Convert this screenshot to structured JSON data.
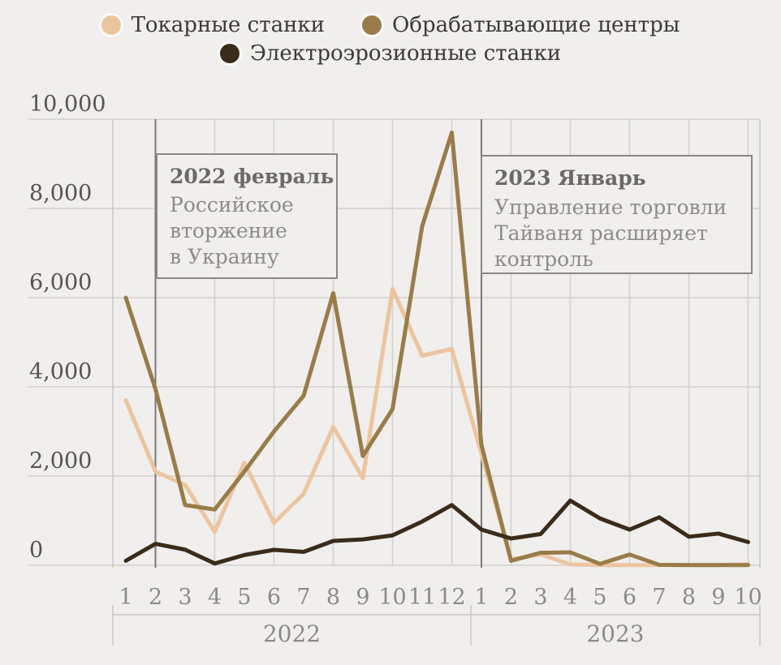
{
  "legend": {
    "items": [
      {
        "label": "Токарные станки",
        "color": "#ecc5a0"
      },
      {
        "label": "Обрабатывающие центры",
        "color": "#997c49"
      },
      {
        "label": "Электроэрозионные станки",
        "color": "#3a2b1a"
      }
    ]
  },
  "annotations": [
    {
      "title": "2022 февраль",
      "lines": [
        "Российское",
        "вторжение",
        "в Украину"
      ]
    },
    {
      "title": "2023 Январь",
      "lines": [
        "Управление торговли",
        "Тайваня расширяет",
        "контроль"
      ]
    }
  ],
  "chart_data": {
    "type": "line",
    "x_tick_labels": [
      "1",
      "2",
      "3",
      "4",
      "5",
      "6",
      "7",
      "8",
      "9",
      "10",
      "11",
      "12",
      "1",
      "2",
      "3",
      "4",
      "5",
      "6",
      "7",
      "8",
      "9",
      "10"
    ],
    "year_groups": [
      {
        "label": "2022",
        "months": 12
      },
      {
        "label": "2023",
        "months": 10
      }
    ],
    "ylim": [
      0,
      10000
    ],
    "yticks": [
      0,
      2000,
      4000,
      6000,
      8000,
      10000
    ],
    "ytick_labels": [
      "0",
      "2,000",
      "4,000",
      "6,000",
      "8,000",
      "10,000"
    ],
    "grid": "on",
    "legend_position": "top",
    "event_markers": [
      {
        "month_index": 1,
        "label": "2022 февраль"
      },
      {
        "month_index": 12,
        "label": "2023 Январь"
      }
    ],
    "series": [
      {
        "name": "Токарные станки",
        "color": "#ecc5a0",
        "values": [
          3700,
          2100,
          1800,
          750,
          2300,
          950,
          1600,
          3100,
          1950,
          6200,
          4700,
          4850,
          2500,
          130,
          240,
          20,
          5,
          5,
          5,
          5,
          5,
          20
        ]
      },
      {
        "name": "Обрабатывающие центры",
        "color": "#997c49",
        "values": [
          6000,
          3950,
          1350,
          1250,
          2100,
          3000,
          3800,
          6100,
          2450,
          3500,
          7600,
          9700,
          2700,
          100,
          280,
          290,
          30,
          240,
          10,
          5,
          5,
          5
        ]
      },
      {
        "name": "Электроэрозионные станки",
        "color": "#3a2b1a",
        "values": [
          100,
          480,
          350,
          40,
          230,
          345,
          300,
          545,
          580,
          670,
          980,
          1350,
          800,
          600,
          700,
          1450,
          1050,
          800,
          1075,
          640,
          710,
          520
        ]
      }
    ],
    "colors": {
      "background": "#f0efed",
      "gridline": "#d2d0cc",
      "border": "#c9c7c3",
      "event_marker": "#7b7976",
      "ytick_text": "#56544f",
      "xtick_text": "#8d8b87"
    }
  }
}
